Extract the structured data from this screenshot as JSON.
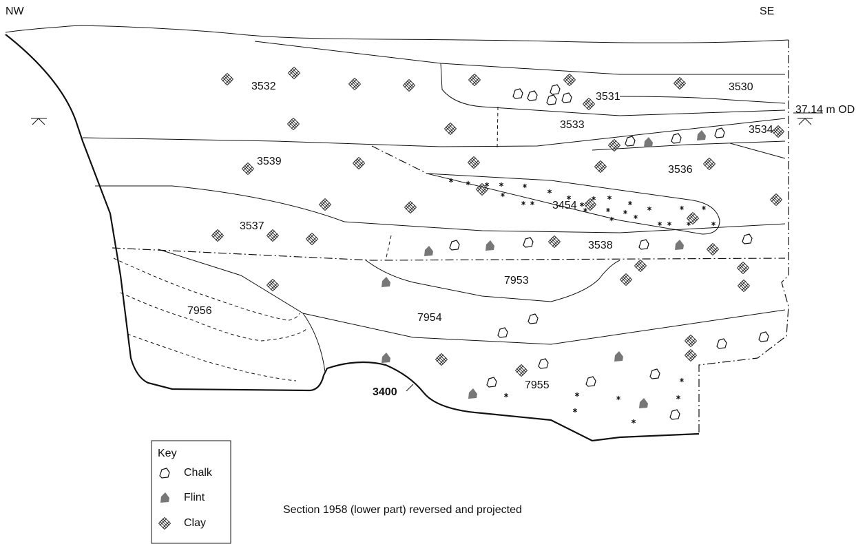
{
  "orientation": {
    "left": "NW",
    "right": "SE"
  },
  "datum": "37.14 m OD",
  "layers": [
    {
      "label": "3532"
    },
    {
      "label": "3531"
    },
    {
      "label": "3530"
    },
    {
      "label": "3533"
    },
    {
      "label": "3534"
    },
    {
      "label": "3539"
    },
    {
      "label": "3536"
    },
    {
      "label": "3454"
    },
    {
      "label": "3537"
    },
    {
      "label": "3538"
    },
    {
      "label": "7953"
    },
    {
      "label": "7956"
    },
    {
      "label": "7954"
    },
    {
      "label": "7955"
    }
  ],
  "cut_label": "3400",
  "key": {
    "title": "Key",
    "items": [
      {
        "label": "Chalk"
      },
      {
        "label": "Flint"
      },
      {
        "label": "Clay"
      }
    ]
  },
  "caption": "Section 1958 (lower part) reversed and projected"
}
